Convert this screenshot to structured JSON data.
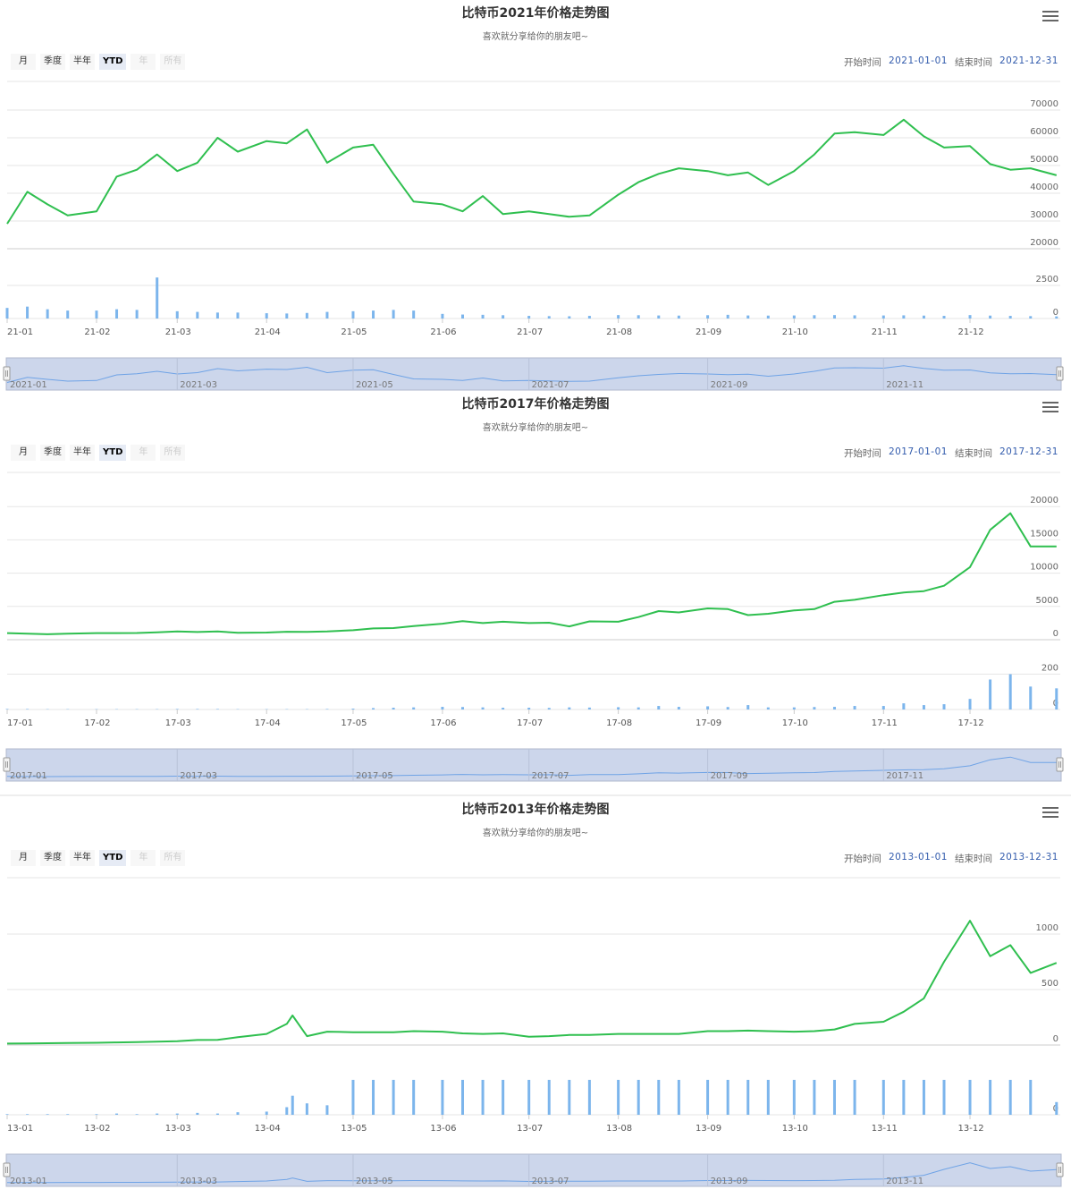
{
  "page": {
    "subtitle": "喜欢就分享给你的朋友吧~",
    "range_buttons": [
      "月",
      "季度",
      "半年",
      "YTD",
      "年",
      "所有"
    ],
    "selected_button": "YTD",
    "disabled_buttons": [
      "年",
      "所有"
    ],
    "start_label": "开始时间",
    "end_label": "结束时间",
    "menu_icon": "hamburger-menu-icon"
  },
  "colors": {
    "price_line": "#2fbf4f",
    "volume_bar": "#7cb5ec",
    "navigator_bg": "#ccd6eb",
    "navigator_line": "#6fa3e6",
    "grid": "#e6e6e6",
    "date_text": "#335cad"
  },
  "chart_data": [
    {
      "type": "line",
      "title": "比特币2021年价格走势图",
      "subtitle": "喜欢就分享给你的朋友吧~",
      "start_date": "2021-01-01",
      "end_date": "2021-12-31",
      "x": [
        "2021-01-01",
        "2021-01-08",
        "2021-01-15",
        "2021-01-22",
        "2021-02-01",
        "2021-02-08",
        "2021-02-15",
        "2021-02-22",
        "2021-03-01",
        "2021-03-08",
        "2021-03-15",
        "2021-03-22",
        "2021-04-01",
        "2021-04-08",
        "2021-04-15",
        "2021-04-22",
        "2021-05-01",
        "2021-05-08",
        "2021-05-15",
        "2021-05-22",
        "2021-06-01",
        "2021-06-08",
        "2021-06-15",
        "2021-06-22",
        "2021-07-01",
        "2021-07-08",
        "2021-07-15",
        "2021-07-22",
        "2021-08-01",
        "2021-08-08",
        "2021-08-15",
        "2021-08-22",
        "2021-09-01",
        "2021-09-08",
        "2021-09-15",
        "2021-09-22",
        "2021-10-01",
        "2021-10-08",
        "2021-10-15",
        "2021-10-22",
        "2021-11-01",
        "2021-11-08",
        "2021-11-15",
        "2021-11-22",
        "2021-12-01",
        "2021-12-08",
        "2021-12-15",
        "2021-12-22",
        "2021-12-31"
      ],
      "series": [
        {
          "values": [
            29000,
            40500,
            36000,
            32000,
            33500,
            46000,
            48500,
            54000,
            48000,
            51000,
            60000,
            55000,
            58800,
            58000,
            63000,
            51000,
            56500,
            57500,
            47000,
            37000,
            36000,
            33500,
            39000,
            32500,
            33500,
            32500,
            31500,
            32000,
            39500,
            44000,
            47000,
            49000,
            48000,
            46500,
            47500,
            43000,
            48000,
            54000,
            61500,
            62000,
            61000,
            66500,
            60500,
            56500,
            57000,
            50500,
            48500,
            49000,
            46500
          ]
        }
      ],
      "volume": [
        800,
        900,
        700,
        600,
        600,
        700,
        650,
        3100,
        550,
        500,
        450,
        450,
        400,
        380,
        420,
        500,
        550,
        600,
        650,
        600,
        350,
        300,
        280,
        250,
        200,
        180,
        170,
        200,
        260,
        250,
        230,
        220,
        250,
        280,
        230,
        220,
        230,
        250,
        260,
        240,
        230,
        240,
        220,
        200,
        260,
        220,
        200,
        180,
        160
      ],
      "ylim": [
        20000,
        80000
      ],
      "volume_ylim": [
        0,
        4800
      ],
      "y_ticks": [
        20000,
        30000,
        40000,
        50000,
        60000,
        70000
      ],
      "volume_ticks": [
        0,
        2500
      ],
      "x_tick_labels": [
        "21-01",
        "21-02",
        "21-03",
        "21-04",
        "21-05",
        "21-06",
        "21-07",
        "21-08",
        "21-09",
        "21-10",
        "21-11",
        "21-12"
      ],
      "navigator_labels": [
        "2021-01",
        "2021-03",
        "2021-05",
        "2021-07",
        "2021-09",
        "2021-11"
      ],
      "grid": true
    },
    {
      "type": "line",
      "title": "比特币2017年价格走势图",
      "subtitle": "喜欢就分享给你的朋友吧~",
      "start_date": "2017-01-01",
      "end_date": "2017-12-31",
      "x": [
        "2017-01-01",
        "2017-01-08",
        "2017-01-15",
        "2017-01-22",
        "2017-02-01",
        "2017-02-08",
        "2017-02-15",
        "2017-02-22",
        "2017-03-01",
        "2017-03-08",
        "2017-03-15",
        "2017-03-22",
        "2017-04-01",
        "2017-04-08",
        "2017-04-15",
        "2017-04-22",
        "2017-05-01",
        "2017-05-08",
        "2017-05-15",
        "2017-05-22",
        "2017-06-01",
        "2017-06-08",
        "2017-06-15",
        "2017-06-22",
        "2017-07-01",
        "2017-07-08",
        "2017-07-15",
        "2017-07-22",
        "2017-08-01",
        "2017-08-08",
        "2017-08-15",
        "2017-08-22",
        "2017-09-01",
        "2017-09-08",
        "2017-09-15",
        "2017-09-22",
        "2017-10-01",
        "2017-10-08",
        "2017-10-15",
        "2017-10-22",
        "2017-11-01",
        "2017-11-08",
        "2017-11-15",
        "2017-11-22",
        "2017-12-01",
        "2017-12-08",
        "2017-12-15",
        "2017-12-22",
        "2017-12-31"
      ],
      "series": [
        {
          "values": [
            1000,
            900,
            820,
            900,
            990,
            1000,
            1010,
            1120,
            1230,
            1150,
            1250,
            1040,
            1080,
            1190,
            1180,
            1250,
            1420,
            1700,
            1750,
            2050,
            2400,
            2800,
            2500,
            2700,
            2500,
            2550,
            2000,
            2750,
            2700,
            3400,
            4300,
            4100,
            4700,
            4600,
            3700,
            3900,
            4400,
            4600,
            5700,
            6000,
            6700,
            7100,
            7300,
            8100,
            10900,
            16500,
            19000,
            14000,
            14000
          ]
        }
      ],
      "volume": [
        3,
        3,
        2,
        2,
        2,
        2,
        2,
        2,
        3,
        3,
        3,
        2,
        2,
        2,
        2,
        3,
        5,
        8,
        10,
        12,
        15,
        14,
        12,
        10,
        10,
        9,
        12,
        11,
        13,
        12,
        20,
        15,
        18,
        14,
        25,
        12,
        12,
        14,
        15,
        20,
        20,
        35,
        25,
        30,
        60,
        170,
        200,
        130,
        120
      ],
      "ylim": [
        0,
        25000
      ],
      "volume_ylim": [
        0,
        360
      ],
      "y_ticks": [
        0,
        5000,
        10000,
        15000,
        20000
      ],
      "volume_ticks": [
        0,
        200
      ],
      "x_tick_labels": [
        "17-01",
        "17-02",
        "17-03",
        "17-04",
        "17-05",
        "17-06",
        "17-07",
        "17-08",
        "17-09",
        "17-10",
        "17-11",
        "17-12"
      ],
      "navigator_labels": [
        "2017-01",
        "2017-03",
        "2017-05",
        "2017-07",
        "2017-09",
        "2017-11"
      ],
      "grid": true
    },
    {
      "type": "line",
      "title": "比特币2013年价格走势图",
      "subtitle": "喜欢就分享给你的朋友吧~",
      "start_date": "2013-01-01",
      "end_date": "2013-12-31",
      "x": [
        "2013-01-01",
        "2013-01-08",
        "2013-01-15",
        "2013-01-22",
        "2013-02-01",
        "2013-02-08",
        "2013-02-15",
        "2013-02-22",
        "2013-03-01",
        "2013-03-08",
        "2013-03-15",
        "2013-03-22",
        "2013-04-01",
        "2013-04-08",
        "2013-04-10",
        "2013-04-15",
        "2013-04-22",
        "2013-05-01",
        "2013-05-08",
        "2013-05-15",
        "2013-05-22",
        "2013-06-01",
        "2013-06-08",
        "2013-06-15",
        "2013-06-22",
        "2013-07-01",
        "2013-07-08",
        "2013-07-15",
        "2013-07-22",
        "2013-08-01",
        "2013-08-08",
        "2013-08-15",
        "2013-08-22",
        "2013-09-01",
        "2013-09-08",
        "2013-09-15",
        "2013-09-22",
        "2013-10-01",
        "2013-10-08",
        "2013-10-15",
        "2013-10-22",
        "2013-11-01",
        "2013-11-08",
        "2013-11-15",
        "2013-11-22",
        "2013-12-01",
        "2013-12-08",
        "2013-12-15",
        "2013-12-22",
        "2013-12-31"
      ],
      "series": [
        {
          "values": [
            13,
            14,
            16,
            18,
            20,
            23,
            27,
            30,
            34,
            45,
            47,
            70,
            100,
            190,
            266,
            80,
            120,
            115,
            115,
            115,
            125,
            120,
            105,
            100,
            105,
            75,
            80,
            90,
            90,
            100,
            100,
            100,
            100,
            125,
            125,
            130,
            125,
            120,
            125,
            140,
            190,
            210,
            300,
            420,
            750,
            1120,
            800,
            900,
            650,
            740
          ]
        }
      ],
      "volume": [
        1,
        1,
        1,
        1,
        1,
        2,
        1,
        2,
        2,
        3,
        2,
        4,
        5,
        12,
        30,
        18,
        15,
        55,
        55,
        55,
        55,
        55,
        55,
        55,
        55,
        55,
        55,
        55,
        55,
        55,
        55,
        55,
        55,
        55,
        55,
        55,
        55,
        55,
        55,
        55,
        55,
        55,
        55,
        55,
        55,
        55,
        55,
        55,
        55,
        20
      ],
      "ylim": [
        0,
        1500
      ],
      "volume_ylim": [
        0,
        100
      ],
      "y_ticks": [
        0,
        500,
        1000
      ],
      "volume_ticks": [
        0
      ],
      "x_tick_labels": [
        "13-01",
        "13-02",
        "13-03",
        "13-04",
        "13-05",
        "13-06",
        "13-07",
        "13-08",
        "13-09",
        "13-10",
        "13-11",
        "13-12"
      ],
      "navigator_labels": [
        "2013-01",
        "2013-03",
        "2013-05",
        "2013-07",
        "2013-09",
        "2013-11"
      ],
      "grid": true
    }
  ]
}
